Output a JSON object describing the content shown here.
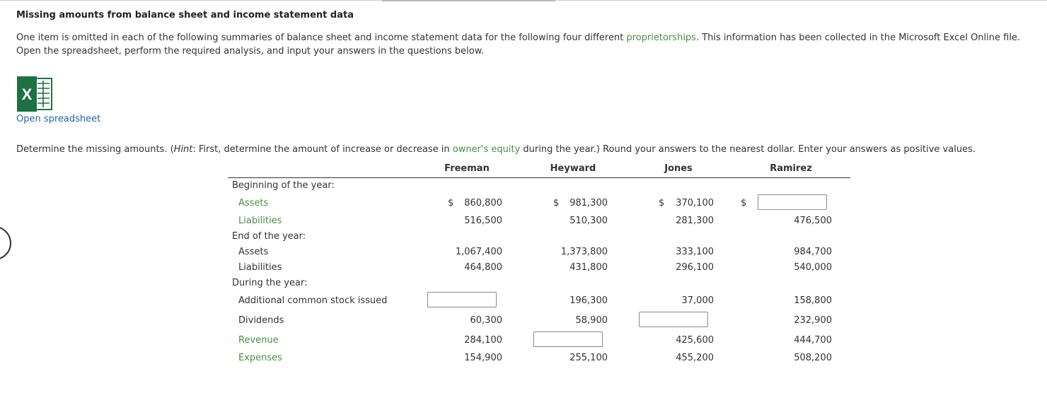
{
  "title": "Missing amounts from balance sheet and income statement data",
  "intro": {
    "part1": "One item is omitted in each of the following summaries of balance sheet and income statement data for the following four different ",
    "link": "proprietorships",
    "part2": ". This information has been collected in the Microsoft Excel Online file. Open the spreadsheet, perform the required analysis, and input your answers in the questions below."
  },
  "excel_icon_letter": "X",
  "open_spreadsheet": "Open spreadsheet",
  "instruction": {
    "pre": "Determine the missing amounts. (",
    "hint": "Hint",
    "mid": ": First, determine the amount of increase or decrease in ",
    "link": "owner's equity",
    "post": " during the year.) Round your answers to the nearest dollar. Enter your answers as positive values."
  },
  "columns": [
    "Freeman",
    "Heyward",
    "Jones",
    "Ramirez"
  ],
  "sections": {
    "beginning": "Beginning of the year:",
    "end": "End of the year:",
    "during": "During the year:"
  },
  "rows": {
    "beg_assets": {
      "label": "Assets",
      "dollar": "$",
      "values": [
        "860,800",
        "981,300",
        "370,100",
        ""
      ]
    },
    "beg_liabilities": {
      "label": "Liabilities",
      "values": [
        "516,500",
        "510,300",
        "281,300",
        "476,500"
      ]
    },
    "end_assets": {
      "label": "Assets",
      "values": [
        "1,067,400",
        "1,373,800",
        "333,100",
        "984,700"
      ]
    },
    "end_liabilities": {
      "label": "Liabilities",
      "values": [
        "464,800",
        "431,800",
        "296,100",
        "540,000"
      ]
    },
    "stock_issued": {
      "label": "Additional common stock issued",
      "values": [
        "",
        "196,300",
        "37,000",
        "158,800"
      ]
    },
    "dividends": {
      "label": "Dividends",
      "values": [
        "60,300",
        "58,900",
        "",
        "232,900"
      ]
    },
    "revenue": {
      "label": "Revenue",
      "values": [
        "284,100",
        "",
        "425,600",
        "444,700"
      ]
    },
    "expenses": {
      "label": "Expenses",
      "values": [
        "154,900",
        "255,100",
        "455,200",
        "508,200"
      ]
    }
  },
  "colors": {
    "link_green": "#4a8f43",
    "link_blue": "#2465a8",
    "excel_green": "#1e7145"
  }
}
